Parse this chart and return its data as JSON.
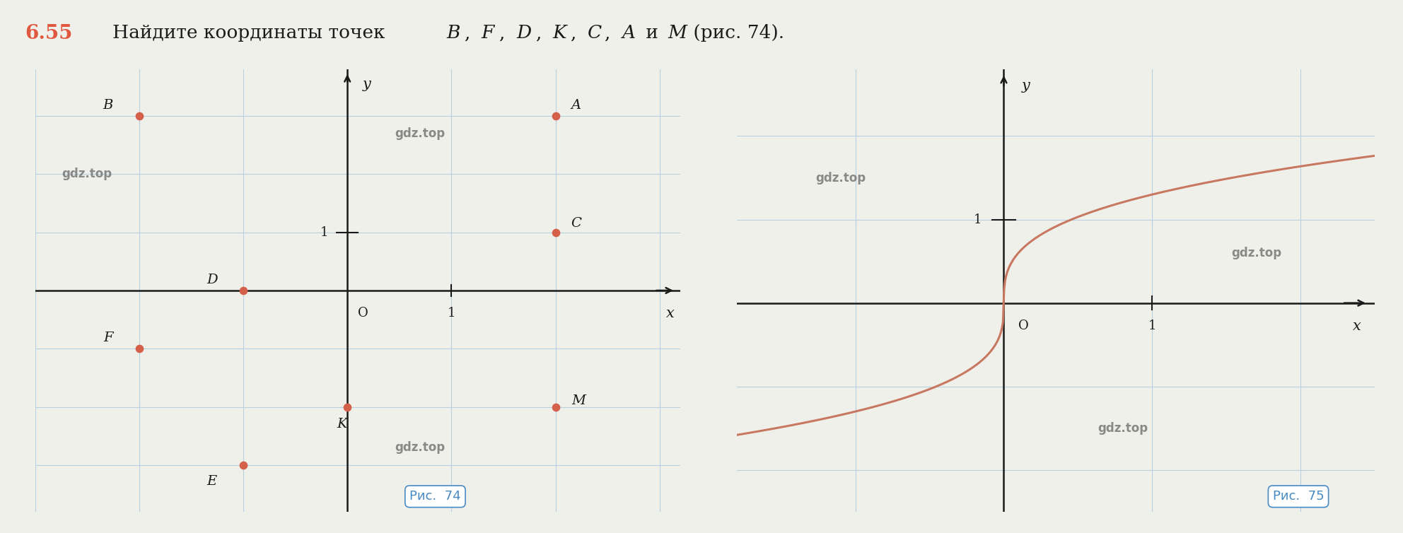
{
  "title_number": "6.55",
  "title_text": "Найдите координаты точек ",
  "title_italic": "B, F, D, K, C, A",
  "title_end": " и ",
  "title_m": "M",
  "title_rest": " (рис. 74).",
  "background_color": "#f0f0eb",
  "grid_color": "#b8cfe0",
  "axis_color": "#1a1a1a",
  "point_color": "#d4604a",
  "point_size": 55,
  "fig1_points": {
    "B": [
      -2,
      3
    ],
    "A": [
      2,
      3
    ],
    "C": [
      2,
      1
    ],
    "D": [
      -1,
      0
    ],
    "F": [
      -2,
      -1
    ],
    "K": [
      0,
      -2
    ],
    "M": [
      2,
      -2
    ],
    "E": [
      -1,
      -3
    ]
  },
  "fig1_xlim": [
    -3.0,
    3.2
  ],
  "fig1_ylim": [
    -3.8,
    3.8
  ],
  "fig2_xlim": [
    -1.8,
    2.5
  ],
  "fig2_ylim": [
    -2.5,
    2.8
  ],
  "label_color": "#1a1a1a",
  "ric74_color": "#4a8bc4",
  "ric75_color": "#4a8bc4",
  "curve_color": "#c87860"
}
